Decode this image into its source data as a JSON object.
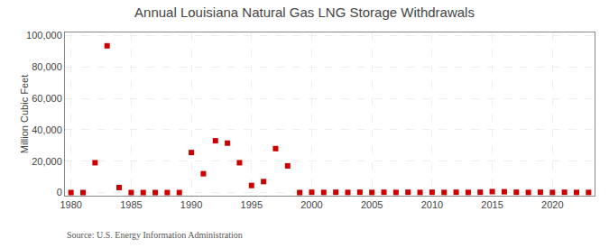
{
  "chart_data": {
    "type": "scatter",
    "title": "Annual Louisiana Natural Gas LNG Storage Withdrawals",
    "ylabel": "Million Cubic Feet",
    "source": "Source: U.S. Energy Information Administration",
    "color": "#cc0000",
    "marker": "square",
    "grid": true,
    "xlim": [
      1979.5,
      2023.5
    ],
    "ylim": [
      -2000,
      102000
    ],
    "xticks": [
      1980,
      1985,
      1990,
      1995,
      2000,
      2005,
      2010,
      2015,
      2020
    ],
    "yticks": [
      0,
      {
        "value": 20000,
        "label": "20,000"
      },
      {
        "value": 40000,
        "label": "40,000"
      },
      {
        "value": 60000,
        "label": "60,000"
      },
      {
        "value": 80000,
        "label": "80,000"
      },
      {
        "value": 100000,
        "label": "100,000"
      }
    ],
    "x": [
      1980,
      1981,
      1982,
      1983,
      1984,
      1985,
      1986,
      1987,
      1988,
      1989,
      1990,
      1991,
      1992,
      1993,
      1994,
      1995,
      1996,
      1997,
      1998,
      1999,
      2000,
      2001,
      2002,
      2003,
      2004,
      2005,
      2006,
      2007,
      2008,
      2009,
      2010,
      2011,
      2012,
      2013,
      2014,
      2015,
      2016,
      2017,
      2018,
      2019,
      2020,
      2021,
      2022,
      2023
    ],
    "values": [
      0,
      0,
      19000,
      93500,
      3200,
      0,
      0,
      0,
      0,
      0,
      25500,
      12000,
      33000,
      31500,
      19000,
      4500,
      7000,
      28000,
      17000,
      0,
      200,
      100,
      200,
      100,
      200,
      100,
      200,
      100,
      200,
      100,
      200,
      100,
      200,
      100,
      200,
      600,
      500,
      200,
      100,
      200,
      100,
      200,
      100,
      100
    ]
  }
}
